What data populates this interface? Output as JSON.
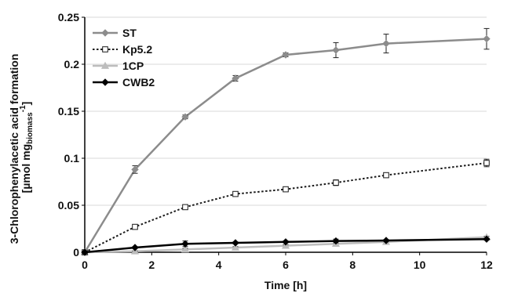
{
  "chart_data": {
    "type": "line",
    "title": "",
    "xlabel": "Time [h]",
    "ylabel": {
      "line1": "3-Chlorophenylacetic acid formation",
      "line2_prefix": "[µmol mg",
      "line2_subscript": "biomass",
      "line2_superscript": "-1",
      "line2_suffix": "]"
    },
    "xlim": [
      0,
      12
    ],
    "ylim": [
      0,
      0.25
    ],
    "xticks": [
      0,
      2,
      4,
      6,
      8,
      10,
      12
    ],
    "xtick_labels": [
      "0",
      "2",
      "4",
      "6",
      "8",
      "10",
      "12"
    ],
    "yticks": [
      0,
      0.05,
      0.1,
      0.15,
      0.2,
      0.25
    ],
    "ytick_labels": [
      "0",
      "0.05",
      "0.1",
      "0.15",
      "0.2",
      "0.25"
    ],
    "grid": "horizontal",
    "legend_position": "top-left",
    "series": [
      {
        "name": "ST",
        "color": "#8c8c8c",
        "line_style": "solid",
        "marker": "diamond",
        "marker_fill": "#8c8c8c",
        "x": [
          0,
          1.5,
          3,
          4.5,
          6,
          7.5,
          9,
          12
        ],
        "y": [
          0,
          0.088,
          0.144,
          0.185,
          0.21,
          0.215,
          0.222,
          0.227
        ],
        "error": [
          0,
          0.004,
          0.002,
          0.003,
          0.002,
          0.008,
          0.01,
          0.011
        ]
      },
      {
        "name": "Kp5.2",
        "color": "#1a1a1a",
        "line_style": "dotted",
        "marker": "square",
        "marker_fill": "#ffffff",
        "x": [
          0,
          1.5,
          3,
          4.5,
          6,
          7.5,
          9,
          12
        ],
        "y": [
          0,
          0.027,
          0.048,
          0.062,
          0.067,
          0.074,
          0.082,
          0.095
        ],
        "error": [
          0,
          0.001,
          0.001,
          0.001,
          0.001,
          0.003,
          0.002,
          0.004
        ]
      },
      {
        "name": "1CP",
        "color": "#bdbdbd",
        "line_style": "solid",
        "marker": "triangle",
        "marker_fill": "#bdbdbd",
        "x": [
          0,
          1.5,
          3,
          4.5,
          6,
          7.5,
          9,
          12
        ],
        "y": [
          0,
          0.001,
          0.003,
          0.005,
          0.007,
          0.009,
          0.011,
          0.016
        ],
        "error": [
          0,
          0.0005,
          0.001,
          0.001,
          0.001,
          0.001,
          0.001,
          0.001
        ]
      },
      {
        "name": "CWB2",
        "color": "#000000",
        "line_style": "solid",
        "marker": "diamond",
        "marker_fill": "#000000",
        "x": [
          0,
          1.5,
          3,
          4.5,
          6,
          7.5,
          9,
          12
        ],
        "y": [
          0,
          0.005,
          0.009,
          0.01,
          0.011,
          0.012,
          0.0125,
          0.014
        ],
        "error": [
          0,
          0.001,
          0.003,
          0.001,
          0.001,
          0.002,
          0.001,
          0.001
        ]
      }
    ]
  }
}
